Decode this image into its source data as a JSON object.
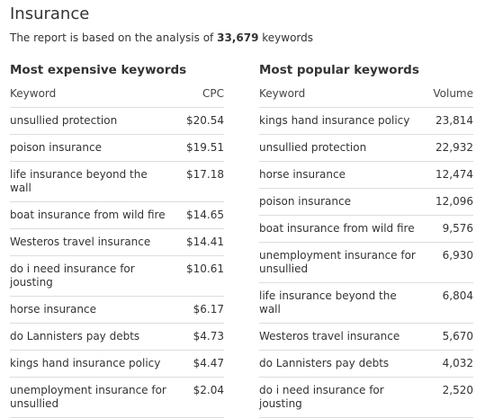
{
  "header": {
    "title": "Insurance",
    "summary_prefix": "The report is based on the analysis of",
    "summary_count": "33,679",
    "summary_suffix": "keywords"
  },
  "tables": [
    {
      "title": "Most expensive keywords",
      "columns": [
        "Keyword",
        "CPC"
      ],
      "rows": [
        [
          "unsullied protection",
          "$20.54"
        ],
        [
          "poison insurance",
          "$19.51"
        ],
        [
          "life insurance beyond the wall",
          "$17.18"
        ],
        [
          "boat insurance from wild fire",
          "$14.65"
        ],
        [
          "Westeros travel insurance",
          "$14.41"
        ],
        [
          "do i need insurance for jousting",
          "$10.61"
        ],
        [
          "horse insurance",
          "$6.17"
        ],
        [
          "do Lannisters pay debts",
          "$4.73"
        ],
        [
          "kings hand insurance policy",
          "$4.47"
        ],
        [
          "unemployment insurance for unsullied",
          "$2.04"
        ]
      ]
    },
    {
      "title": "Most popular keywords",
      "columns": [
        "Keyword",
        "Volume"
      ],
      "rows": [
        [
          "kings hand insurance policy",
          "23,814"
        ],
        [
          "unsullied protection",
          "22,932"
        ],
        [
          "horse insurance",
          "12,474"
        ],
        [
          "poison insurance",
          "12,096"
        ],
        [
          "boat insurance from wild fire",
          "9,576"
        ],
        [
          "unemployment insurance for unsullied",
          "6,930"
        ],
        [
          "life insurance beyond the wall",
          "6,804"
        ],
        [
          "Westeros travel insurance",
          "5,670"
        ],
        [
          "do Lannisters pay debts",
          "4,032"
        ],
        [
          "do i need insurance for jousting",
          "2,520"
        ]
      ]
    }
  ]
}
